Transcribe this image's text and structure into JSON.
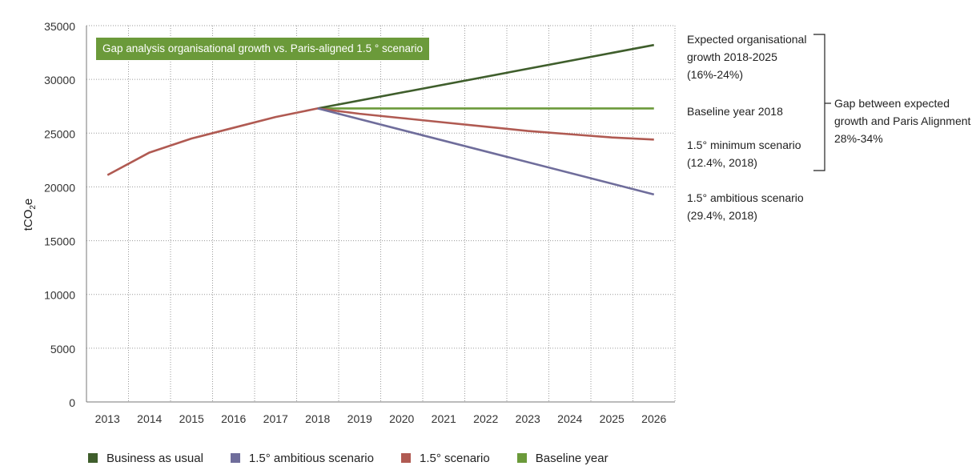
{
  "chart_data": {
    "type": "line",
    "title": "Gap analysis organisational growth vs. Paris-aligned 1.5 ° scenario",
    "ylabel_main": "tCO",
    "ylabel_sub": "2",
    "ylabel_end": "e",
    "xlabel": "",
    "ylim": [
      0,
      35000
    ],
    "yticks": [
      "0",
      "5000",
      "10000",
      "15000",
      "20000",
      "25000",
      "30000",
      "35000"
    ],
    "yticks_values": [
      0,
      5000,
      10000,
      15000,
      20000,
      25000,
      30000,
      35000
    ],
    "categories": [
      "2013",
      "2014",
      "2015",
      "2016",
      "2017",
      "2018",
      "2019",
      "2020",
      "2021",
      "2022",
      "2023",
      "2024",
      "2025",
      "2026"
    ],
    "grid": "dotted",
    "legend_position": "bottom",
    "series": [
      {
        "name": "Business as usual",
        "color": "#3f5e2c",
        "x": [
          "2018",
          "2026"
        ],
        "values": [
          27300,
          33200
        ]
      },
      {
        "name": "1.5° ambitious scenario",
        "color": "#6f6d9b",
        "x": [
          "2018",
          "2026"
        ],
        "values": [
          27300,
          19300
        ]
      },
      {
        "name": "1.5° scenario",
        "color": "#b05a52",
        "x": [
          "2013",
          "2014",
          "2015",
          "2016",
          "2017",
          "2018",
          "2019",
          "2020",
          "2021",
          "2022",
          "2023",
          "2024",
          "2025",
          "2026"
        ],
        "values": [
          21100,
          23200,
          24500,
          25500,
          26500,
          27300,
          26800,
          26400,
          26000,
          25600,
          25200,
          24900,
          24600,
          24400
        ]
      },
      {
        "name": "Baseline year",
        "color": "#6b9a3a",
        "x": [
          "2018",
          "2026"
        ],
        "values": [
          27300,
          27300
        ]
      }
    ],
    "annotations": {
      "expected_growth": [
        "Expected organisational",
        "growth 2018-2025",
        "(16%-24%)"
      ],
      "baseline": [
        "Baseline year 2018"
      ],
      "minimum": [
        "1.5° minimum scenario",
        "(12.4%, 2018)"
      ],
      "ambitious": [
        "1.5° ambitious scenario",
        "(29.4%, 2018)"
      ],
      "gap": [
        "Gap between expected",
        "growth and Paris Alignment",
        "28%-34%"
      ]
    }
  }
}
